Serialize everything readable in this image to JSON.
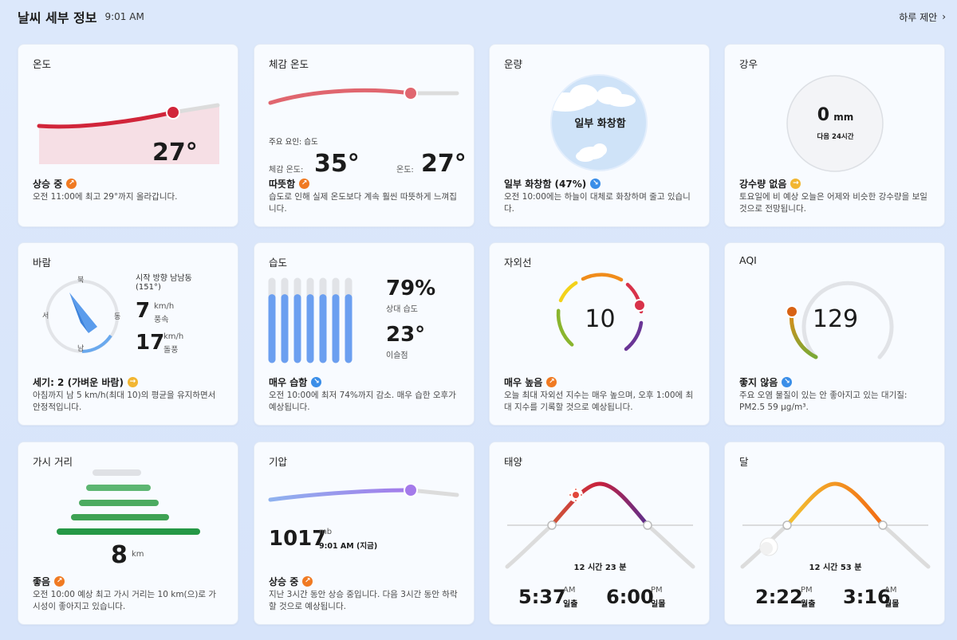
{
  "header": {
    "title": "날씨 세부 정보",
    "time": "9:01 AM",
    "suggest": "하루 제안"
  },
  "temperature": {
    "title": "온도",
    "value": "27°",
    "status": "상승 중",
    "desc": "오전 11:00에 최고 29°까지 올라갑니다."
  },
  "feels": {
    "title": "체감 온도",
    "factor": "주요 요인: 습도",
    "feels_label": "체감 온도:",
    "feels_value": "35°",
    "temp_label": "온도:",
    "temp_value": "27°",
    "status": "따뜻함",
    "desc": "습도로 인해 실제 온도보다 계속 훨씬 따뜻하게 느껴집니다."
  },
  "cloud": {
    "title": "운량",
    "center": "일부 화창함",
    "status": "일부 화창함 (47%)",
    "desc": "오전 10:00에는 하늘이 대체로 화창하며 줄고 있습니다."
  },
  "rain": {
    "title": "강우",
    "value": "0",
    "unit": "mm",
    "sub": "다음 24시간",
    "status": "강수량 없음",
    "desc": "토요일에 비 예상 오늘은 어제와 비슷한 강수량을 보일 것으로 전망됩니다."
  },
  "wind": {
    "title": "바람",
    "north": "북",
    "east": "동",
    "south": "남",
    "west": "서",
    "direction": "시작 방향 남남동",
    "degrees": "(151°)",
    "speed": "7",
    "speed_unit": "km/h",
    "speed_label": "풍속",
    "gust": "17",
    "gust_unit": "km/h",
    "gust_label": "돌풍",
    "status": "세기: 2 (가벼운 바람)",
    "desc": "아침까지 남 5 km/h(최대 10)의 평균을 유지하면서 안정적입니다."
  },
  "humidity": {
    "title": "습도",
    "value": "79%",
    "value_label": "상대 습도",
    "dew": "23°",
    "dew_label": "이슬점",
    "bars": [
      0.79,
      0.79,
      0.79,
      0.79,
      0.79,
      0.79,
      0.79
    ],
    "status": "매우 습함",
    "desc": "오전 10:00에 최저 74%까지 감소. 매우 습한 오후가 예상됩니다."
  },
  "uv": {
    "title": "자외선",
    "value": "10",
    "status": "매우 높음",
    "desc": "오늘 최대 자외선 지수는 매우 높으며, 오후 1:00에 최대 지수를 기록할 것으로 예상됩니다."
  },
  "aqi": {
    "title": "AQI",
    "value": "129",
    "status": "좋지 않음",
    "desc": "주요 오염 물질이 있는 안 좋아지고 있는 대기질: PM2.5 59 μg/m³."
  },
  "visibility": {
    "title": "가시 거리",
    "value": "8",
    "unit": "km",
    "status": "좋음",
    "desc": "오전 10:00 예상 최고 가시 거리는 10 km(으)로 가시성이 좋아지고 있습니다."
  },
  "pressure": {
    "title": "기압",
    "value": "1017",
    "unit": "mb",
    "time": "9:01 AM (지금)",
    "status": "상승 중",
    "desc": "지난 3시간 동안 상승 중입니다. 다음 3시간 동안 하락할 것으로 예상됩니다."
  },
  "sun": {
    "title": "태양",
    "duration": "12 시간 23 분",
    "rise": "5:37",
    "rise_ampm": "AM",
    "rise_label": "일출",
    "set": "6:00",
    "set_ampm": "PM",
    "set_label": "일몰"
  },
  "moon": {
    "title": "달",
    "duration": "12 시간 53 분",
    "rise": "2:22",
    "rise_ampm": "PM",
    "rise_label": "월출",
    "set": "3:16",
    "set_ampm": "AM",
    "set_label": "월몰"
  }
}
